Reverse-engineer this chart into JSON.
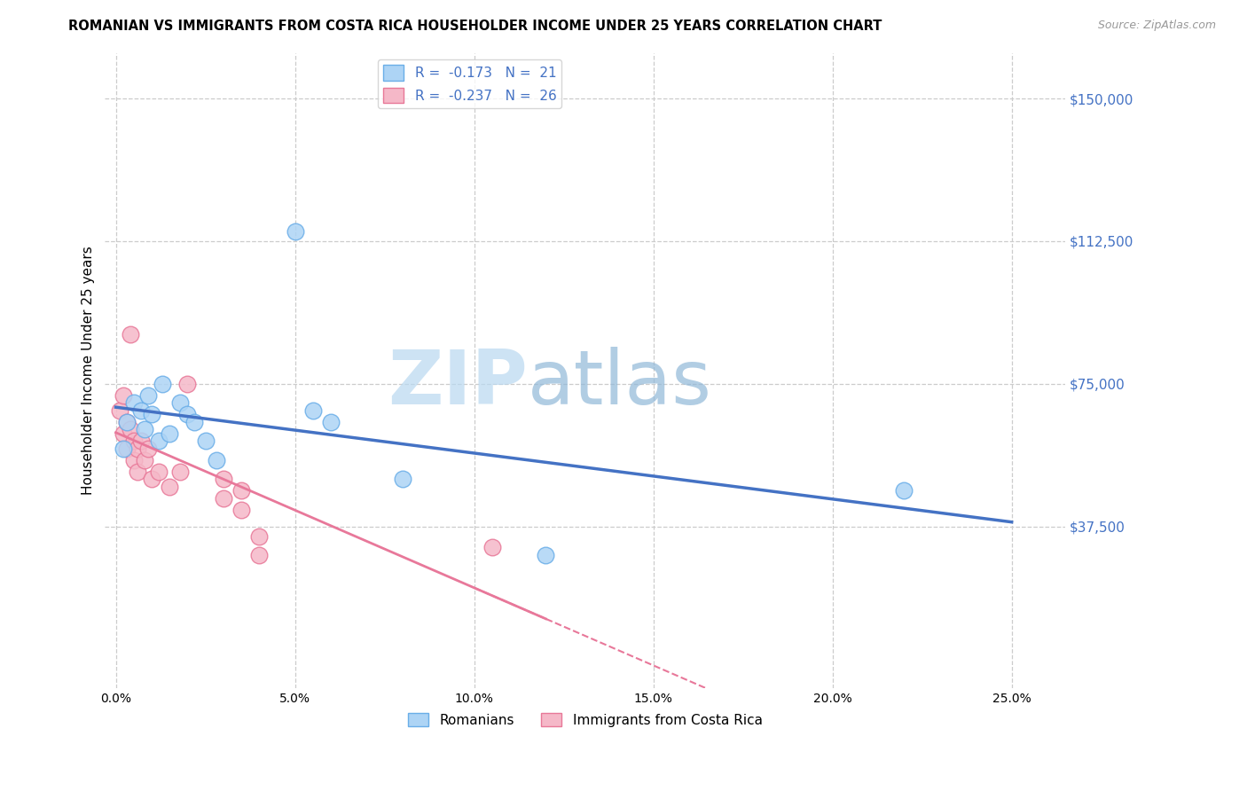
{
  "title": "ROMANIAN VS IMMIGRANTS FROM COSTA RICA HOUSEHOLDER INCOME UNDER 25 YEARS CORRELATION CHART",
  "source": "Source: ZipAtlas.com",
  "xlabel_ticks": [
    "0.0%",
    "5.0%",
    "10.0%",
    "15.0%",
    "20.0%",
    "25.0%"
  ],
  "xlabel_vals": [
    0.0,
    0.05,
    0.1,
    0.15,
    0.2,
    0.25
  ],
  "ylabel_ticks": [
    "$150,000",
    "$112,500",
    "$75,000",
    "$37,500"
  ],
  "ylabel_vals": [
    150000,
    112500,
    75000,
    37500
  ],
  "ylim": [
    -5000,
    162000
  ],
  "xlim": [
    -0.003,
    0.265
  ],
  "watermark_zip": "ZIP",
  "watermark_atlas": "atlas",
  "legend_r_blue": "-0.173",
  "legend_n_blue": "21",
  "legend_r_pink": "-0.237",
  "legend_n_pink": "26",
  "blue_color": "#add4f5",
  "pink_color": "#f5b8c8",
  "blue_edge_color": "#6aaee8",
  "pink_edge_color": "#e87898",
  "blue_line_color": "#4472c4",
  "pink_line_color": "#e8789a",
  "blue_scatter": [
    [
      0.002,
      58000
    ],
    [
      0.003,
      65000
    ],
    [
      0.005,
      70000
    ],
    [
      0.007,
      68000
    ],
    [
      0.008,
      63000
    ],
    [
      0.009,
      72000
    ],
    [
      0.01,
      67000
    ],
    [
      0.012,
      60000
    ],
    [
      0.013,
      75000
    ],
    [
      0.015,
      62000
    ],
    [
      0.018,
      70000
    ],
    [
      0.02,
      67000
    ],
    [
      0.022,
      65000
    ],
    [
      0.025,
      60000
    ],
    [
      0.028,
      55000
    ],
    [
      0.05,
      115000
    ],
    [
      0.055,
      68000
    ],
    [
      0.06,
      65000
    ],
    [
      0.08,
      50000
    ],
    [
      0.12,
      30000
    ],
    [
      0.22,
      47000
    ]
  ],
  "pink_scatter": [
    [
      0.001,
      68000
    ],
    [
      0.002,
      62000
    ],
    [
      0.002,
      72000
    ],
    [
      0.003,
      65000
    ],
    [
      0.003,
      58000
    ],
    [
      0.004,
      63000
    ],
    [
      0.004,
      88000
    ],
    [
      0.005,
      60000
    ],
    [
      0.005,
      55000
    ],
    [
      0.006,
      58000
    ],
    [
      0.006,
      52000
    ],
    [
      0.007,
      60000
    ],
    [
      0.008,
      55000
    ],
    [
      0.009,
      58000
    ],
    [
      0.01,
      50000
    ],
    [
      0.012,
      52000
    ],
    [
      0.015,
      48000
    ],
    [
      0.018,
      52000
    ],
    [
      0.02,
      75000
    ],
    [
      0.03,
      50000
    ],
    [
      0.03,
      45000
    ],
    [
      0.035,
      47000
    ],
    [
      0.035,
      42000
    ],
    [
      0.04,
      30000
    ],
    [
      0.04,
      35000
    ],
    [
      0.105,
      32000
    ]
  ],
  "circle_size": 180
}
